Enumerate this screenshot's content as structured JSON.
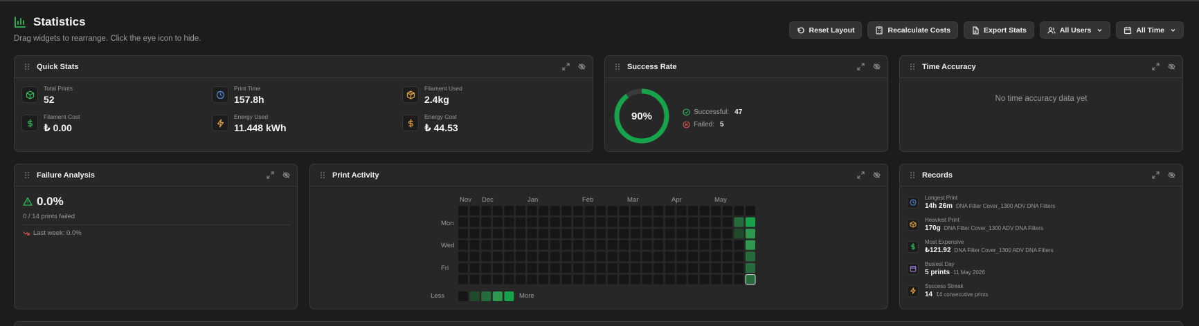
{
  "header": {
    "title": "Statistics",
    "subtitle": "Drag widgets to rearrange. Click the eye icon to hide."
  },
  "toolbar": {
    "reset_layout": "Reset Layout",
    "recalculate_costs": "Recalculate Costs",
    "export_stats": "Export Stats",
    "users_filter": "All Users",
    "time_filter": "All Time"
  },
  "colors": {
    "accent": "#2fbf5b",
    "clock_blue": "#4e8fe8",
    "amber": "#e8a33a",
    "failed_red": "#e05555",
    "purple": "#a77be0"
  },
  "quick_stats": {
    "title": "Quick Stats",
    "items": [
      {
        "label": "Total Prints",
        "value": "52",
        "icon": "cube-icon"
      },
      {
        "label": "Print Time",
        "value": "157.8h",
        "icon": "clock-icon"
      },
      {
        "label": "Filament Used",
        "value": "2.4kg",
        "icon": "box-icon"
      },
      {
        "label": "Filament Cost",
        "value": "₺ 0.00",
        "icon": "dollar-icon"
      },
      {
        "label": "Energy Used",
        "value": "11.448 kWh",
        "icon": "bolt-icon"
      },
      {
        "label": "Energy Cost",
        "value": "₺ 44.53",
        "icon": "dollar-icon"
      }
    ]
  },
  "success_rate": {
    "title": "Success Rate",
    "percent_label": "90%",
    "fraction": 0.9,
    "successful_label": "Successful:",
    "successful_count": "47",
    "failed_label": "Failed:",
    "failed_count": "5"
  },
  "time_accuracy": {
    "title": "Time Accuracy",
    "empty_message": "No time accuracy data yet"
  },
  "failure_analysis": {
    "title": "Failure Analysis",
    "rate": "0.0%",
    "subtext": "0 / 14 prints failed",
    "last_week": "Last week: 0.0%"
  },
  "print_activity": {
    "title": "Print Activity",
    "months": [
      "Nov",
      "Dec",
      "Jan",
      "Feb",
      "Mar",
      "Apr",
      "May"
    ],
    "day_labels": [
      "Mon",
      "Wed",
      "Fri"
    ],
    "legend_less": "Less",
    "legend_more": "More",
    "active_cells": [
      {
        "week": 24,
        "day": 1,
        "level": 2
      },
      {
        "week": 25,
        "day": 1,
        "level": 4
      },
      {
        "week": 24,
        "day": 2,
        "level": 1
      },
      {
        "week": 25,
        "day": 2,
        "level": 3
      },
      {
        "week": 25,
        "day": 3,
        "level": 3
      },
      {
        "week": 25,
        "day": 4,
        "level": 2
      },
      {
        "week": 25,
        "day": 5,
        "level": 2
      },
      {
        "week": 25,
        "day": 6,
        "level": 2
      }
    ],
    "today_cell": {
      "week": 25,
      "day": 6
    }
  },
  "records": {
    "title": "Records",
    "items": [
      {
        "label": "Longest Print",
        "value": "14h 26m",
        "detail": "DNA Filter Cover_1300 ADV DNA Filters",
        "icon": "clock-icon"
      },
      {
        "label": "Heaviest Print",
        "value": "170g",
        "detail": "DNA Filter Cover_1300 ADV DNA Filters",
        "icon": "box-icon"
      },
      {
        "label": "Most Expensive",
        "value": "₺121.92",
        "detail": "DNA Filter Cover_1300 ADV DNA Filters",
        "icon": "dollar-icon"
      },
      {
        "label": "Busiest Day",
        "value": "5 prints",
        "detail": "11 May 2026",
        "icon": "calendar-icon"
      },
      {
        "label": "Success Streak",
        "value": "14",
        "detail": "14 consecutive prints",
        "icon": "bolt-icon"
      }
    ]
  }
}
